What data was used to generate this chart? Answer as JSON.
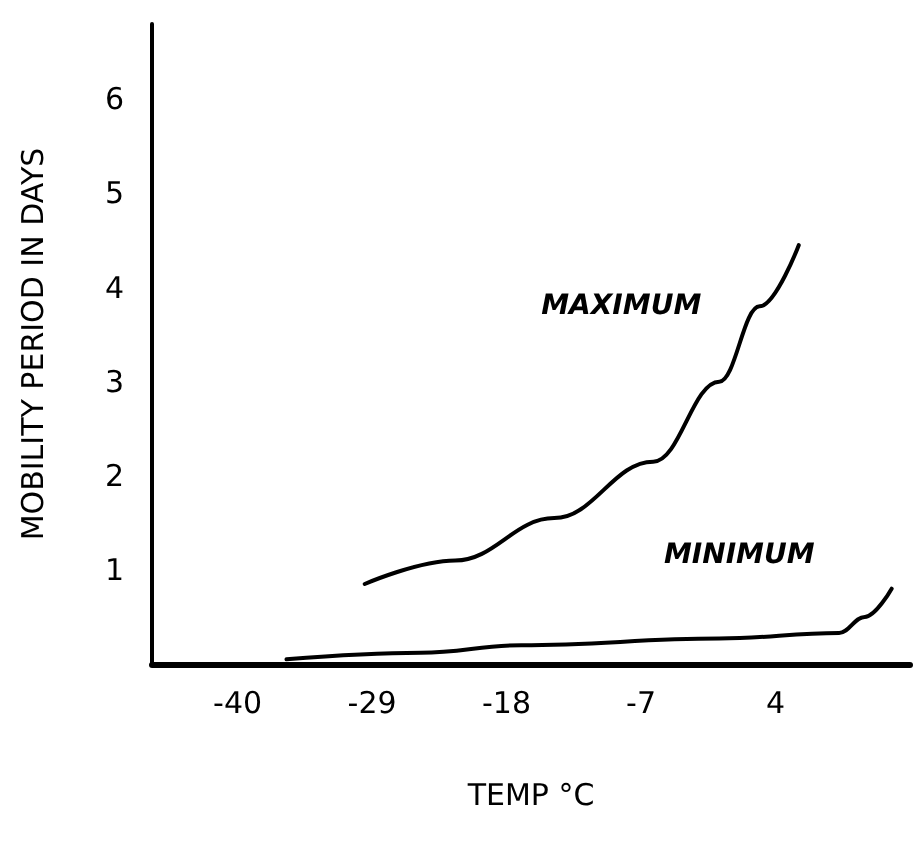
{
  "chart_data": {
    "type": "line",
    "xlabel": "TEMP °C",
    "ylabel": "MOBILITY PERIOD IN DAYS",
    "xlim": [
      -47,
      15
    ],
    "xticks": [
      -40,
      -29,
      -18,
      -7,
      4
    ],
    "ylim": [
      0,
      6.8
    ],
    "yticks": [
      1,
      2,
      3,
      4,
      5,
      6
    ],
    "series": [
      {
        "name": "MAXIMUM",
        "color": "#000000",
        "x": [
          -29.6,
          -22.2,
          -14.1,
          -6.0,
          -0.6,
          2.7,
          5.9
        ],
        "values": [
          0.85,
          1.1,
          1.55,
          2.15,
          3.0,
          3.8,
          4.45
        ]
      },
      {
        "name": "MINIMUM",
        "color": "#000000",
        "x": [
          -36,
          -25,
          -16.8,
          -0.6,
          9.2,
          11.3,
          13.5
        ],
        "values": [
          0.05,
          0.12,
          0.2,
          0.27,
          0.33,
          0.5,
          0.8
        ]
      }
    ],
    "grid": false,
    "legend": false,
    "marker": "none",
    "line_style": "solid"
  }
}
